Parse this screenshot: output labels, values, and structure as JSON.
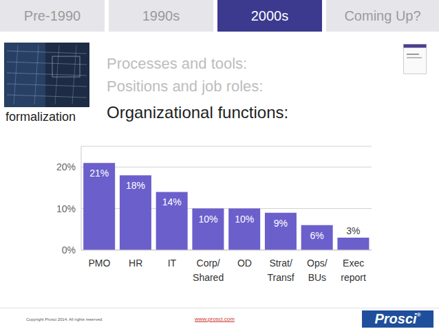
{
  "tabs": [
    {
      "label": "Pre-1990",
      "color": "#e6e6ea"
    },
    {
      "label": "1990s",
      "color": "#e6e6ea"
    },
    {
      "label": "2000s",
      "color": "#3b3a8f"
    },
    {
      "label": "Coming Up?",
      "color": "#e6e6ea"
    }
  ],
  "image_caption": "formalization",
  "headings": [
    {
      "text": "Processes and tools:",
      "color": "#bdbdbd"
    },
    {
      "text": "Positions and job roles:",
      "color": "#bdbdbd"
    },
    {
      "text": "Organizational functions:",
      "color": "#1e1e1e"
    }
  ],
  "footer": {
    "copyright": "Copyright Prosci 2014. All rights reserved.",
    "url": "www.prosci.com",
    "logo": "Prosci",
    "logo_mark": "®"
  },
  "chart_data": {
    "type": "bar",
    "categories": [
      "PMO",
      "HR",
      "IT",
      "Corp/ Shared",
      "OD",
      "Strat/ Transf",
      "Ops/ BUs",
      "Exec report"
    ],
    "values": [
      21,
      18,
      14,
      10,
      10,
      9,
      6,
      3
    ],
    "value_labels": [
      "21%",
      "18%",
      "14%",
      "10%",
      "10%",
      "9%",
      "6%",
      "3%"
    ],
    "color": "#6b5fcc",
    "ylim": [
      0,
      25
    ],
    "yticks": [
      {
        "value": 0,
        "label": "0%"
      },
      {
        "value": 10,
        "label": "10%"
      },
      {
        "value": 20,
        "label": "20%"
      }
    ],
    "grid": true,
    "data_labels": true
  }
}
